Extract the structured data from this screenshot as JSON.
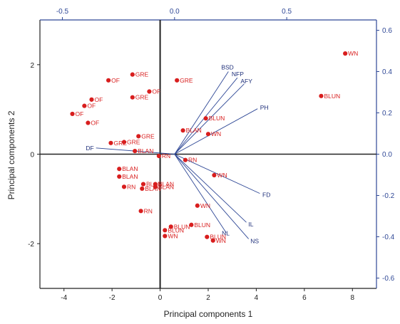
{
  "chart_data": {
    "type": "scatter",
    "title": "",
    "xlabel": "Principal components 1",
    "ylabel": "Principal components 2",
    "xlim": [
      -5,
      9
    ],
    "ylim": [
      -3,
      3
    ],
    "xticks": [
      -4,
      -2,
      0,
      2,
      4,
      6,
      8
    ],
    "yticks": [
      -2,
      0,
      2
    ],
    "x_tick_labels": [
      "-4",
      "-2",
      "0",
      "2",
      "4",
      "6",
      "8"
    ],
    "y_tick_labels": [
      "-2",
      "0",
      "2"
    ],
    "top_axis": {
      "lim": [
        -0.6,
        0.9
      ],
      "ticks": [
        -0.5,
        0,
        0.5
      ],
      "tick_labels": [
        "-0.5",
        "0.0",
        "0.5"
      ]
    },
    "right_axis": {
      "lim": [
        -0.65,
        0.65
      ],
      "ticks": [
        0.6,
        0.4,
        0.2,
        0.0,
        -0.2,
        -0.4,
        -0.6
      ],
      "tick_labels": [
        "0.6",
        "0.4",
        "0.2",
        "0.0",
        "-0.2",
        "-0.4",
        "-0.6"
      ]
    },
    "colors": {
      "scores": "#d81e1e",
      "loadings": "#2f4896",
      "axis": "#222222",
      "right_axis": "#2f4896"
    },
    "scores": [
      {
        "label": "WN",
        "x": 7.7,
        "y": 2.25
      },
      {
        "label": "BLUN",
        "x": 6.7,
        "y": 1.3
      },
      {
        "label": "GRE",
        "x": 0.7,
        "y": 1.65
      },
      {
        "label": "GRE",
        "x": -1.15,
        "y": 1.78
      },
      {
        "label": "OF",
        "x": -2.15,
        "y": 1.65
      },
      {
        "label": "OF",
        "x": -0.45,
        "y": 1.4
      },
      {
        "label": "GRE",
        "x": -1.15,
        "y": 1.27
      },
      {
        "label": "OF",
        "x": -2.85,
        "y": 1.22
      },
      {
        "label": "OF",
        "x": -3.15,
        "y": 1.08
      },
      {
        "label": "OF",
        "x": -3.65,
        "y": 0.9
      },
      {
        "label": "OF",
        "x": -3.0,
        "y": 0.7
      },
      {
        "label": "BLUN",
        "x": 1.9,
        "y": 0.8
      },
      {
        "label": "BLAN",
        "x": 0.95,
        "y": 0.53
      },
      {
        "label": "WN",
        "x": 2.0,
        "y": 0.45
      },
      {
        "label": "GRE",
        "x": -0.9,
        "y": 0.4
      },
      {
        "label": "GRE",
        "x": -1.5,
        "y": 0.27
      },
      {
        "label": "GRE",
        "x": -2.05,
        "y": 0.25
      },
      {
        "label": "BLAN",
        "x": -1.05,
        "y": 0.07
      },
      {
        "label": "RN",
        "x": -0.05,
        "y": -0.04
      },
      {
        "label": "RN",
        "x": 1.05,
        "y": -0.13
      },
      {
        "label": "BLAN",
        "x": -1.7,
        "y": -0.33
      },
      {
        "label": "BLAN",
        "x": -1.7,
        "y": -0.5
      },
      {
        "label": "WN",
        "x": 2.25,
        "y": -0.47
      },
      {
        "label": "RN",
        "x": -1.5,
        "y": -0.73
      },
      {
        "label": "BLAN",
        "x": -0.7,
        "y": -0.67
      },
      {
        "label": "BLAN",
        "x": -0.2,
        "y": -0.67
      },
      {
        "label": "BLAN",
        "x": -0.2,
        "y": -0.73
      },
      {
        "label": "BLAN",
        "x": -0.75,
        "y": -0.77
      },
      {
        "label": "WN",
        "x": 1.55,
        "y": -1.15
      },
      {
        "label": "RN",
        "x": -0.8,
        "y": -1.27
      },
      {
        "label": "BLUN",
        "x": 1.3,
        "y": -1.58
      },
      {
        "label": "BLUN",
        "x": 0.45,
        "y": -1.62
      },
      {
        "label": "BLUN",
        "x": 0.2,
        "y": -1.7
      },
      {
        "label": "WN",
        "x": 0.2,
        "y": -1.83
      },
      {
        "label": "BLUN",
        "x": 1.95,
        "y": -1.85
      },
      {
        "label": "WN",
        "x": 2.2,
        "y": -1.93
      }
    ],
    "loadings": [
      {
        "label": "BSD",
        "x": 0.24,
        "y": 0.4
      },
      {
        "label": "NFP",
        "x": 0.28,
        "y": 0.37
      },
      {
        "label": "AFY",
        "x": 0.31,
        "y": 0.34
      },
      {
        "label": "PH",
        "x": 0.37,
        "y": 0.22
      },
      {
        "label": "DF",
        "x": -0.35,
        "y": 0.03
      },
      {
        "label": "FD",
        "x": 0.38,
        "y": -0.19
      },
      {
        "label": "IL",
        "x": 0.32,
        "y": -0.33
      },
      {
        "label": "NS",
        "x": 0.33,
        "y": -0.41
      },
      {
        "label": "NL",
        "x": 0.23,
        "y": -0.38
      }
    ]
  }
}
